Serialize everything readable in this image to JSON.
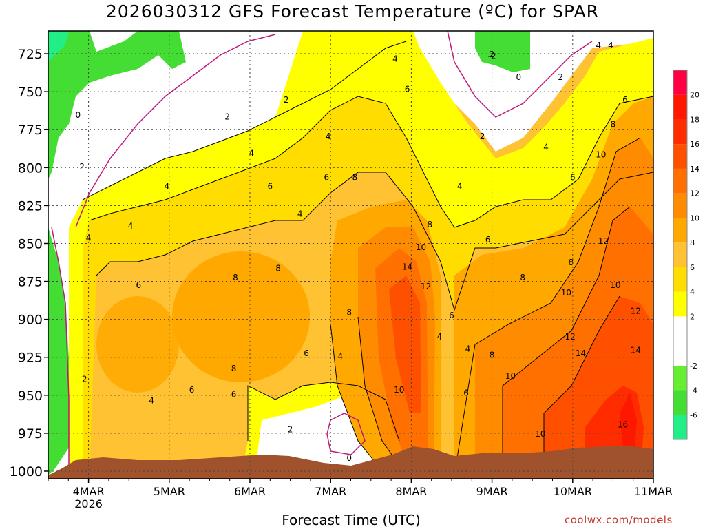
{
  "title": "2026030312 GFS Forecast Temperature (ºC) for SPAR",
  "credit": "coolwx.com/models",
  "chart_data": {
    "type": "heatmap",
    "title": "2026030312 GFS Forecast Temperature (ºC) for SPAR",
    "xlabel": "Forecast Time (UTC)",
    "ylabel": "",
    "y_scale": "pressure (inverted, top 710 hPa)",
    "ylim": [
      710,
      1005
    ],
    "y_ticks": [
      725,
      750,
      775,
      800,
      825,
      850,
      875,
      900,
      925,
      950,
      975,
      1000
    ],
    "x_ticks": [
      {
        "label": "4MAR",
        "sub": "2026",
        "day": 4
      },
      {
        "label": "5MAR",
        "sub": "",
        "day": 5
      },
      {
        "label": "6MAR",
        "sub": "",
        "day": 6
      },
      {
        "label": "7MAR",
        "sub": "",
        "day": 7
      },
      {
        "label": "8MAR",
        "sub": "",
        "day": 8
      },
      {
        "label": "9MAR",
        "sub": "",
        "day": 9
      },
      {
        "label": "10MAR",
        "sub": "",
        "day": 10
      },
      {
        "label": "11MAR",
        "sub": "",
        "day": 11
      }
    ],
    "xlim": [
      3.5,
      11.0
    ],
    "grid": true,
    "colorbar": {
      "position": "right",
      "levels": [
        -8,
        -6,
        -4,
        -2,
        0,
        2,
        4,
        6,
        8,
        10,
        12,
        14,
        16,
        18,
        20,
        22
      ],
      "tick_labels": [
        -6,
        -4,
        -2,
        2,
        4,
        6,
        8,
        10,
        12,
        14,
        16,
        18,
        20
      ],
      "colors": [
        "#22ee88",
        "#44dd33",
        "#66ee33",
        "#ffffff",
        "#ffffff",
        "#ffff00",
        "#ffdd00",
        "#ffc233",
        "#ffa800",
        "#ff8c00",
        "#ff7000",
        "#ff5000",
        "#ff2c00",
        "#ff1800",
        "#ff0044"
      ]
    },
    "contour_labels": [
      {
        "v": "0",
        "day": 3.87,
        "p": 765
      },
      {
        "v": "2",
        "day": 3.92,
        "p": 799
      },
      {
        "v": "4",
        "day": 4.0,
        "p": 846
      },
      {
        "v": "2",
        "day": 3.95,
        "p": 939
      },
      {
        "v": "4",
        "day": 4.52,
        "p": 838
      },
      {
        "v": "4",
        "day": 4.97,
        "p": 812
      },
      {
        "v": "2",
        "day": 5.72,
        "p": 766
      },
      {
        "v": "2",
        "day": 6.45,
        "p": 755
      },
      {
        "v": "4",
        "day": 6.02,
        "p": 790
      },
      {
        "v": "6",
        "day": 6.25,
        "p": 812
      },
      {
        "v": "4",
        "day": 6.62,
        "p": 830
      },
      {
        "v": "6",
        "day": 4.62,
        "p": 877
      },
      {
        "v": "8",
        "day": 5.82,
        "p": 872
      },
      {
        "v": "8",
        "day": 6.35,
        "p": 866
      },
      {
        "v": "8",
        "day": 5.8,
        "p": 932
      },
      {
        "v": "6",
        "day": 5.28,
        "p": 946
      },
      {
        "v": "6",
        "day": 5.8,
        "p": 949
      },
      {
        "v": "4",
        "day": 4.78,
        "p": 953
      },
      {
        "v": "6",
        "day": 6.7,
        "p": 922
      },
      {
        "v": "4",
        "day": 7.12,
        "p": 924
      },
      {
        "v": "2",
        "day": 6.5,
        "p": 972
      },
      {
        "v": "0",
        "day": 7.23,
        "p": 991
      },
      {
        "v": "4",
        "day": 7.8,
        "p": 728
      },
      {
        "v": "6",
        "day": 7.95,
        "p": 748
      },
      {
        "v": "4",
        "day": 6.97,
        "p": 779
      },
      {
        "v": "6",
        "day": 6.95,
        "p": 806
      },
      {
        "v": "8",
        "day": 7.3,
        "p": 806
      },
      {
        "v": "8",
        "day": 8.23,
        "p": 837
      },
      {
        "v": "10",
        "day": 8.12,
        "p": 852
      },
      {
        "v": "14",
        "day": 7.95,
        "p": 865
      },
      {
        "v": "12",
        "day": 8.18,
        "p": 878
      },
      {
        "v": "8",
        "day": 7.23,
        "p": 895
      },
      {
        "v": "10",
        "day": 7.85,
        "p": 946
      },
      {
        "v": "6",
        "day": 8.5,
        "p": 897
      },
      {
        "v": "4",
        "day": 8.35,
        "p": 911
      },
      {
        "v": "4",
        "day": 8.7,
        "p": 919
      },
      {
        "v": "6",
        "day": 8.68,
        "p": 948
      },
      {
        "v": "4",
        "day": 8.6,
        "p": 812
      },
      {
        "v": "2",
        "day": 9.0,
        "p": 725
      },
      {
        "v": "0",
        "day": 9.33,
        "p": 740
      },
      {
        "v": "2",
        "day": 9.85,
        "p": 740
      },
      {
        "v": "2",
        "day": 8.88,
        "p": 779
      },
      {
        "v": "4",
        "day": 9.67,
        "p": 786
      },
      {
        "v": "6",
        "day": 10.0,
        "p": 806
      },
      {
        "v": "6",
        "day": 8.95,
        "p": 847
      },
      {
        "v": "8",
        "day": 9.38,
        "p": 872
      },
      {
        "v": "8",
        "day": 9.98,
        "p": 862
      },
      {
        "v": "10",
        "day": 10.35,
        "p": 791
      },
      {
        "v": "12",
        "day": 10.38,
        "p": 848
      },
      {
        "v": "10",
        "day": 9.92,
        "p": 882
      },
      {
        "v": "10",
        "day": 10.53,
        "p": 877
      },
      {
        "v": "12",
        "day": 9.97,
        "p": 911
      },
      {
        "v": "12",
        "day": 10.78,
        "p": 894
      },
      {
        "v": "14",
        "day": 10.1,
        "p": 922
      },
      {
        "v": "14",
        "day": 10.78,
        "p": 920
      },
      {
        "v": "16",
        "day": 10.62,
        "p": 969
      },
      {
        "v": "8",
        "day": 9.0,
        "p": 923
      },
      {
        "v": "10",
        "day": 9.23,
        "p": 937
      },
      {
        "v": "10",
        "day": 9.6,
        "p": 975
      },
      {
        "v": "14",
        "day": 9.98,
        "p": 992
      },
      {
        "v": "4",
        "day": 10.47,
        "p": 719
      },
      {
        "v": "6",
        "day": 10.65,
        "p": 755
      },
      {
        "v": "8",
        "day": 10.5,
        "p": 771
      },
      {
        "v": "-2",
        "day": 9.0,
        "p": 726
      },
      {
        "v": "4",
        "day": 10.32,
        "p": 719
      }
    ]
  }
}
